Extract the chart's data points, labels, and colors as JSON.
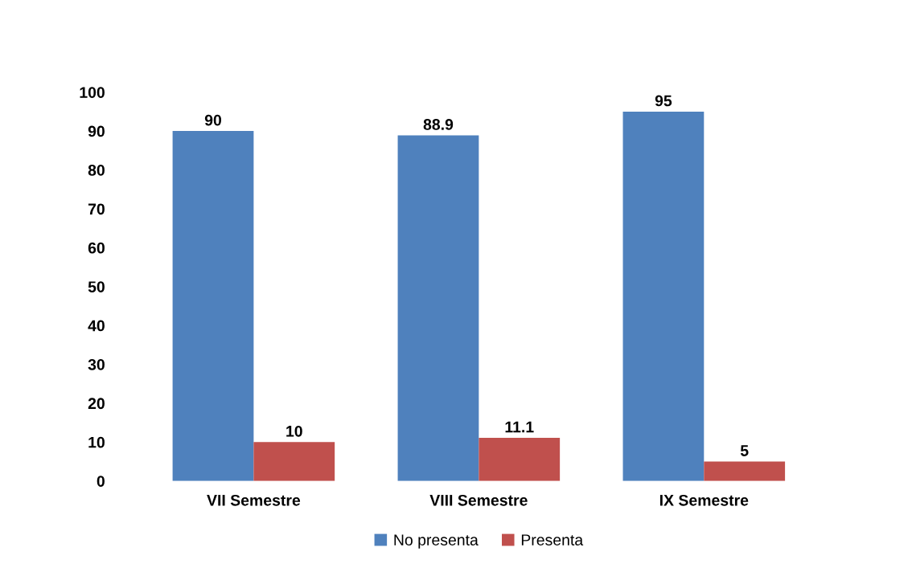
{
  "chart_data": {
    "type": "bar",
    "categories": [
      "VII Semestre",
      "VIII Semestre",
      "IX Semestre"
    ],
    "series": [
      {
        "name": "No presenta",
        "color": "#4f81bd",
        "values": [
          90,
          88.9,
          95
        ]
      },
      {
        "name": "Presenta",
        "color": "#c0504d",
        "values": [
          10,
          11.1,
          5
        ]
      }
    ],
    "ylim": [
      0,
      100
    ],
    "yticks": [
      0,
      10,
      20,
      30,
      40,
      50,
      60,
      70,
      80,
      90,
      100
    ],
    "data_labels": true,
    "legend": "bottom",
    "grid": false
  }
}
